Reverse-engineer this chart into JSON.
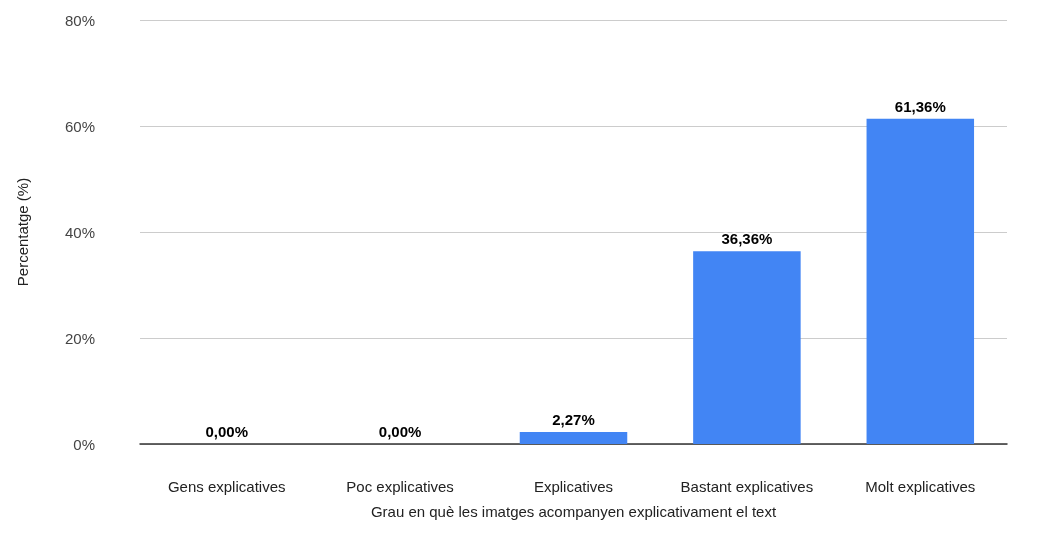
{
  "chart_data": {
    "type": "bar",
    "xlabel": "Grau en què les imatges acompanyen explicativament el text",
    "ylabel": "Percentatge (%)",
    "categories": [
      "Gens explicatives",
      "Poc explicatives",
      "Explicatives",
      "Bastant explicatives",
      "Molt explicatives"
    ],
    "values": [
      0,
      0,
      2.27,
      36.36,
      61.36
    ],
    "value_labels": [
      "0,00%",
      "0,00%",
      "2,27%",
      "36,36%",
      "61,36%"
    ],
    "color": "#4285f4",
    "ylim": [
      0,
      80
    ],
    "yticks": [
      {
        "value": 0,
        "label": "0%"
      },
      {
        "value": 20,
        "label": "20%"
      },
      {
        "value": 40,
        "label": "40%"
      },
      {
        "value": 60,
        "label": "60%"
      },
      {
        "value": 80,
        "label": "80%"
      }
    ],
    "grid": true
  }
}
